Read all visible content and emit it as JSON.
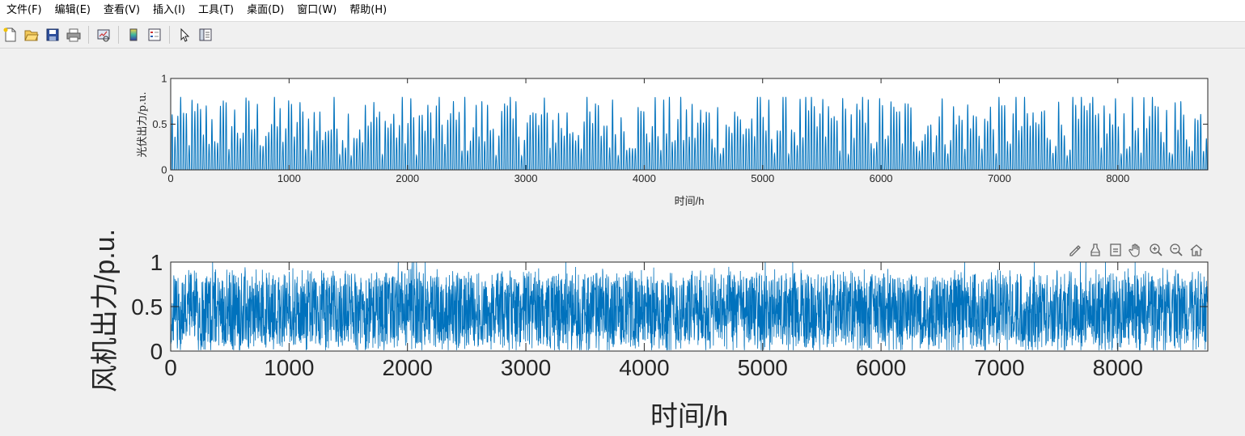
{
  "menu": [
    "文件(F)",
    "编辑(E)",
    "查看(V)",
    "插入(I)",
    "工具(T)",
    "桌面(D)",
    "窗口(W)",
    "帮助(H)"
  ],
  "toolbar": [
    "new-figure-icon",
    "open-file-icon",
    "save-icon",
    "print-icon",
    "link-plot-icon",
    "colorbar-icon",
    "legend-icon",
    "edit-plot-cursor-icon",
    "property-inspector-icon"
  ],
  "axes_toolbar": [
    "brush-icon",
    "data-tips-icon",
    "restore-view-icon",
    "pan-hand-icon",
    "zoom-in-icon",
    "zoom-out-icon",
    "home-icon"
  ],
  "plot_color": "#0072BD",
  "chart_data": [
    {
      "type": "line",
      "xlabel": "时间/h",
      "ylabel": "光伏出力/p.u.",
      "xlim": [
        0,
        8760
      ],
      "ylim": [
        0,
        1
      ],
      "xticks": [
        "0",
        "1000",
        "2000",
        "3000",
        "4000",
        "5000",
        "6000",
        "7000",
        "8000"
      ],
      "yticks": [
        "0",
        "0.5",
        "1"
      ],
      "pattern": "daily solar profile, 0 at night, daytime peaks between 0.4 and 0.8",
      "series": [
        {
          "values_summary": {
            "min": 0,
            "max": 0.8,
            "n_points": 8760
          }
        }
      ]
    },
    {
      "type": "line",
      "xlabel": "时间/h",
      "ylabel": "风机出力/p.u.",
      "xlim": [
        0,
        8760
      ],
      "ylim": [
        0,
        1
      ],
      "xticks": [
        "0",
        "1000",
        "2000",
        "3000",
        "4000",
        "5000",
        "6000",
        "7000",
        "8000"
      ],
      "yticks": [
        "0",
        "0.5",
        "1"
      ],
      "pattern": "random fluctuation mostly between 0.05 and 0.9, occasionally reaching 1",
      "series": [
        {
          "values_summary": {
            "min": 0,
            "max": 1,
            "n_points": 8760
          }
        }
      ]
    }
  ]
}
